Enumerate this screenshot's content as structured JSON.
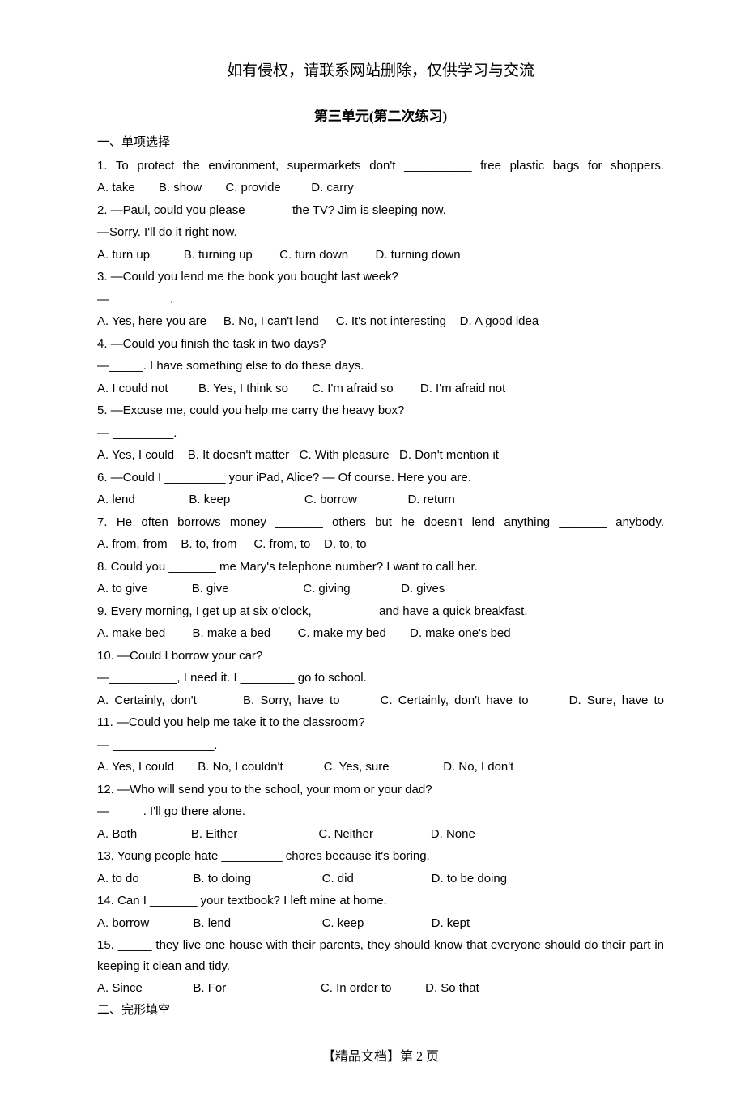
{
  "header": "如有侵权，请联系网站删除，仅供学习与交流",
  "title": "第三单元(第二次练习)",
  "section1_heading": "一、单项选择",
  "q1": {
    "text": "1. To protect the environment, supermarkets don't __________ free plastic bags for shoppers.",
    "options": "A. take       B. show       C. provide         D. carry"
  },
  "q2": {
    "text1": "2. —Paul, could you please ______ the TV? Jim is sleeping now.",
    "text2": "—Sorry. I'll do it right now.",
    "options": "A. turn up          B. turning up        C. turn down        D. turning down"
  },
  "q3": {
    "text1": "3. —Could you lend me the book you bought last week?",
    "text2": "—_________.",
    "options": "A. Yes, here you are     B. No, I can't lend     C. It's not interesting    D. A good idea"
  },
  "q4": {
    "text1": "4. —Could you finish the task in two days?",
    "text2": "—_____. I have something else to do these days.",
    "options": "A. I could not         B. Yes, I think so       C. I'm afraid so        D. I'm afraid not"
  },
  "q5": {
    "text1": "5. —Excuse me, could you help me carry the heavy box?",
    "text2": "— _________.",
    "options": "A. Yes, I could    B. It doesn't matter   C. With pleasure   D. Don't mention it"
  },
  "q6": {
    "text": "6. —Could I _________ your iPad, Alice? — Of course. Here you are.",
    "options": "A. lend                B. keep                      C. borrow               D. return"
  },
  "q7": {
    "text": "7. He often borrows money _______ others but he doesn't lend anything _______ anybody.",
    "options": "A. from, from    B. to, from     C. from, to    D. to, to"
  },
  "q8": {
    "text": "8. Could you _______ me Mary's telephone number? I want to call her.",
    "options": "A. to give             B. give                      C. giving               D. gives"
  },
  "q9": {
    "text": "9. Every morning, I get up at six o'clock, _________ and have a quick breakfast.",
    "options": "A. make bed        B. make a bed        C. make my bed       D. make one's bed"
  },
  "q10": {
    "text1": "10. —Could I borrow your car?",
    "text2": "—__________, I need it. I ________ go to school.",
    "options": "A. Certainly, don't        B. Sorry, have to       C. Certainly, don't have to       D. Sure, have to"
  },
  "q11": {
    "text1": "11. —Could you help me take it to the classroom?",
    "text2": "— _______________.",
    "options": "A. Yes, I could       B. No, I couldn't            C. Yes, sure                D. No, I don't"
  },
  "q12": {
    "text1": "12. —Who will send you to the school, your mom or your dad?",
    "text2": "—_____. I'll go there alone.",
    "options": "A. Both                B. Either                        C. Neither                 D. None"
  },
  "q13": {
    "text": "13. Young people hate _________ chores because it's boring.",
    "options": "A. to do                B. to doing                     C. did                       D. to be doing"
  },
  "q14": {
    "text": "14. Can I _______ your textbook? I left mine at home.",
    "options": "A. borrow             B. lend                           C. keep                    D. kept"
  },
  "q15": {
    "text": "15. _____ they live one house with their parents, they should know that everyone should do their part in keeping it clean and tidy.",
    "options": "A. Since               B. For                            C. In order to          D. So that"
  },
  "section2_heading": "二、完形填空",
  "footer": "【精品文档】第 2 页"
}
